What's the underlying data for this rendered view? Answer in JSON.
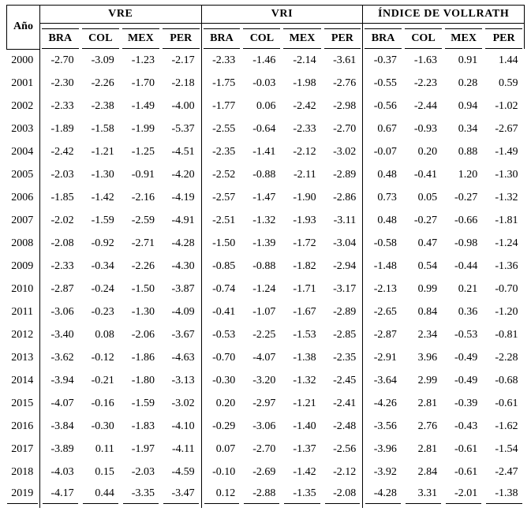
{
  "colors": {
    "background": "#ffffff",
    "text": "#000000",
    "line": "#000000"
  },
  "table": {
    "year_header": "Año",
    "groups": [
      {
        "label": "VRE",
        "columns": [
          "BRA",
          "COL",
          "MEX",
          "PER"
        ]
      },
      {
        "label": "VRI",
        "columns": [
          "BRA",
          "COL",
          "MEX",
          "PER"
        ]
      },
      {
        "label": "ÍNDICE DE VOLLRATH",
        "columns": [
          "BRA",
          "COL",
          "MEX",
          "PER"
        ]
      }
    ],
    "rows": [
      {
        "year": "2000",
        "vre": [
          "-2.70",
          "-3.09",
          "-1.23",
          "-2.17"
        ],
        "vri": [
          "-2.33",
          "-1.46",
          "-2.14",
          "-3.61"
        ],
        "vollrath": [
          "-0.37",
          "-1.63",
          "0.91",
          "1.44"
        ]
      },
      {
        "year": "2001",
        "vre": [
          "-2.30",
          "-2.26",
          "-1.70",
          "-2.18"
        ],
        "vri": [
          "-1.75",
          "-0.03",
          "-1.98",
          "-2.76"
        ],
        "vollrath": [
          "-0.55",
          "-2.23",
          "0.28",
          "0.59"
        ]
      },
      {
        "year": "2002",
        "vre": [
          "-2.33",
          "-2.38",
          "-1.49",
          "-4.00"
        ],
        "vri": [
          "-1.77",
          "0.06",
          "-2.42",
          "-2.98"
        ],
        "vollrath": [
          "-0.56",
          "-2.44",
          "0.94",
          "-1.02"
        ]
      },
      {
        "year": "2003",
        "vre": [
          "-1.89",
          "-1.58",
          "-1.99",
          "-5.37"
        ],
        "vri": [
          "-2.55",
          "-0.64",
          "-2.33",
          "-2.70"
        ],
        "vollrath": [
          "0.67",
          "-0.93",
          "0.34",
          "-2.67"
        ]
      },
      {
        "year": "2004",
        "vre": [
          "-2.42",
          "-1.21",
          "-1.25",
          "-4.51"
        ],
        "vri": [
          "-2.35",
          "-1.41",
          "-2.12",
          "-3.02"
        ],
        "vollrath": [
          "-0.07",
          "0.20",
          "0.88",
          "-1.49"
        ]
      },
      {
        "year": "2005",
        "vre": [
          "-2.03",
          "-1.30",
          "-0.91",
          "-4.20"
        ],
        "vri": [
          "-2.52",
          "-0.88",
          "-2.11",
          "-2.89"
        ],
        "vollrath": [
          "0.48",
          "-0.41",
          "1.20",
          "-1.30"
        ]
      },
      {
        "year": "2006",
        "vre": [
          "-1.85",
          "-1.42",
          "-2.16",
          "-4.19"
        ],
        "vri": [
          "-2.57",
          "-1.47",
          "-1.90",
          "-2.86"
        ],
        "vollrath": [
          "0.73",
          "0.05",
          "-0.27",
          "-1.32"
        ]
      },
      {
        "year": "2007",
        "vre": [
          "-2.02",
          "-1.59",
          "-2.59",
          "-4.91"
        ],
        "vri": [
          "-2.51",
          "-1.32",
          "-1.93",
          "-3.11"
        ],
        "vollrath": [
          "0.48",
          "-0.27",
          "-0.66",
          "-1.81"
        ]
      },
      {
        "year": "2008",
        "vre": [
          "-2.08",
          "-0.92",
          "-2.71",
          "-4.28"
        ],
        "vri": [
          "-1.50",
          "-1.39",
          "-1.72",
          "-3.04"
        ],
        "vollrath": [
          "-0.58",
          "0.47",
          "-0.98",
          "-1.24"
        ]
      },
      {
        "year": "2009",
        "vre": [
          "-2.33",
          "-0.34",
          "-2.26",
          "-4.30"
        ],
        "vri": [
          "-0.85",
          "-0.88",
          "-1.82",
          "-2.94"
        ],
        "vollrath": [
          "-1.48",
          "0.54",
          "-0.44",
          "-1.36"
        ]
      },
      {
        "year": "2010",
        "vre": [
          "-2.87",
          "-0.24",
          "-1.50",
          "-3.87"
        ],
        "vri": [
          "-0.74",
          "-1.24",
          "-1.71",
          "-3.17"
        ],
        "vollrath": [
          "-2.13",
          "0.99",
          "0.21",
          "-0.70"
        ]
      },
      {
        "year": "2011",
        "vre": [
          "-3.06",
          "-0.23",
          "-1.30",
          "-4.09"
        ],
        "vri": [
          "-0.41",
          "-1.07",
          "-1.67",
          "-2.89"
        ],
        "vollrath": [
          "-2.65",
          "0.84",
          "0.36",
          "-1.20"
        ]
      },
      {
        "year": "2012",
        "vre": [
          "-3.40",
          "0.08",
          "-2.06",
          "-3.67"
        ],
        "vri": [
          "-0.53",
          "-2.25",
          "-1.53",
          "-2.85"
        ],
        "vollrath": [
          "-2.87",
          "2.34",
          "-0.53",
          "-0.81"
        ]
      },
      {
        "year": "2013",
        "vre": [
          "-3.62",
          "-0.12",
          "-1.86",
          "-4.63"
        ],
        "vri": [
          "-0.70",
          "-4.07",
          "-1.38",
          "-2.35"
        ],
        "vollrath": [
          "-2.91",
          "3.96",
          "-0.49",
          "-2.28"
        ]
      },
      {
        "year": "2014",
        "vre": [
          "-3.94",
          "-0.21",
          "-1.80",
          "-3.13"
        ],
        "vri": [
          "-0.30",
          "-3.20",
          "-1.32",
          "-2.45"
        ],
        "vollrath": [
          "-3.64",
          "2.99",
          "-0.49",
          "-0.68"
        ]
      },
      {
        "year": "2015",
        "vre": [
          "-4.07",
          "-0.16",
          "-1.59",
          "-3.02"
        ],
        "vri": [
          "0.20",
          "-2.97",
          "-1.21",
          "-2.41"
        ],
        "vollrath": [
          "-4.26",
          "2.81",
          "-0.39",
          "-0.61"
        ]
      },
      {
        "year": "2016",
        "vre": [
          "-3.84",
          "-0.30",
          "-1.83",
          "-4.10"
        ],
        "vri": [
          "-0.29",
          "-3.06",
          "-1.40",
          "-2.48"
        ],
        "vollrath": [
          "-3.56",
          "2.76",
          "-0.43",
          "-1.62"
        ]
      },
      {
        "year": "2017",
        "vre": [
          "-3.89",
          "0.11",
          "-1.97",
          "-4.11"
        ],
        "vri": [
          "0.07",
          "-2.70",
          "-1.37",
          "-2.56"
        ],
        "vollrath": [
          "-3.96",
          "2.81",
          "-0.61",
          "-1.54"
        ]
      },
      {
        "year": "2018",
        "vre": [
          "-4.03",
          "0.15",
          "-2.03",
          "-4.59"
        ],
        "vri": [
          "-0.10",
          "-2.69",
          "-1.42",
          "-2.12"
        ],
        "vollrath": [
          "-3.92",
          "2.84",
          "-0.61",
          "-2.47"
        ]
      },
      {
        "year": "2019",
        "vre": [
          "-4.17",
          "0.44",
          "-3.35",
          "-3.47"
        ],
        "vri": [
          "0.12",
          "-2.88",
          "-1.35",
          "-2.08"
        ],
        "vollrath": [
          "-4.28",
          "3.31",
          "-2.01",
          "-1.38"
        ]
      }
    ]
  }
}
